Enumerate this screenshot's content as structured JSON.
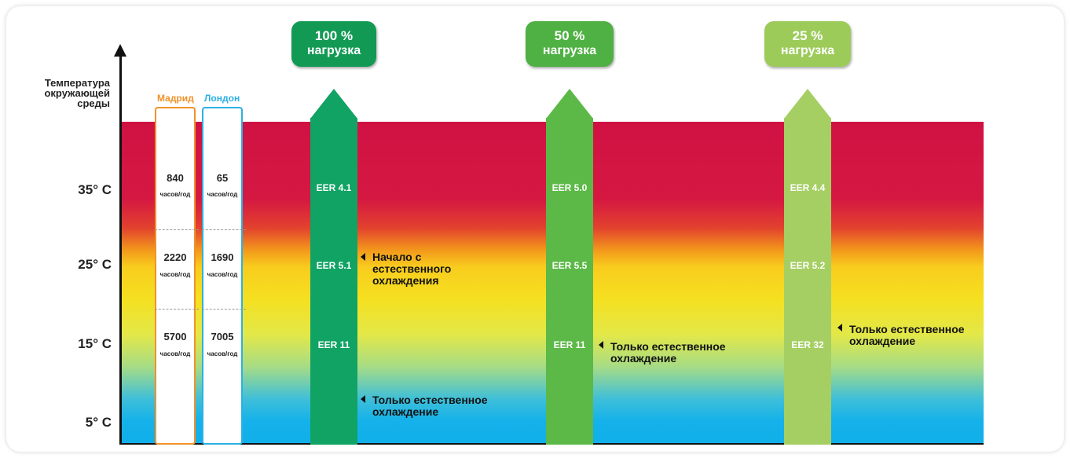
{
  "y_axis": {
    "title": "Температура окружающей среды",
    "ticks": [
      "35° C",
      "25° C",
      "15° C",
      "5° C"
    ]
  },
  "cities": [
    {
      "name": "Мадрид",
      "color": "#f0922b",
      "hours": [
        "840",
        "2220",
        "5700"
      ]
    },
    {
      "name": "Лондон",
      "color": "#2cb0e4",
      "hours": [
        "65",
        "1690",
        "7005"
      ]
    }
  ],
  "hours_unit": "часов/год",
  "loads": [
    {
      "percent": "100 %",
      "label": "нагрузка",
      "color": "#10a364",
      "badge_color": "#129a55",
      "eer": [
        "EER 4.1",
        "EER 5.1",
        "EER 11"
      ]
    },
    {
      "percent": "50 %",
      "label": "нагрузка",
      "color": "#5cb947",
      "badge_color": "#4fb043",
      "eer": [
        "EER 5.0",
        "EER 5.5",
        "EER 11"
      ]
    },
    {
      "percent": "25 %",
      "label": "нагрузка",
      "color": "#a5cf63",
      "badge_color": "#9ccb5a",
      "eer": [
        "EER 4.4",
        "EER 5.2",
        "EER 32"
      ]
    }
  ],
  "notes": {
    "start_free_cooling": "Начало с естественного охлаждения",
    "only_free_cooling_100": "Только естественное охлаждение",
    "only_free_cooling_50": "Только естественное охлаждение",
    "only_free_cooling_25": "Только естественное охлаждение"
  }
}
